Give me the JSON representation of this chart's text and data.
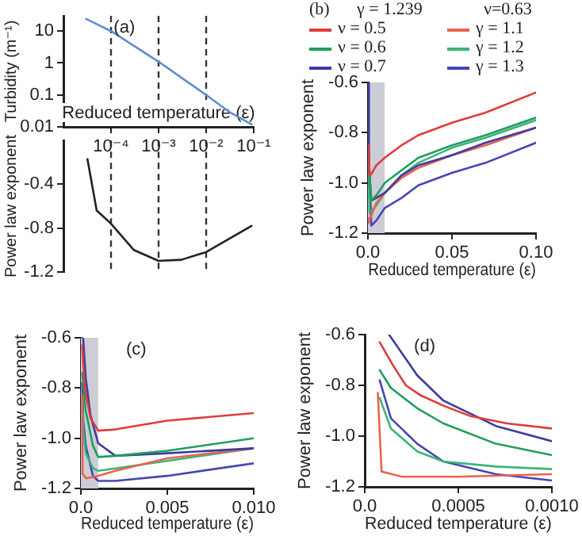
{
  "chart_data": [
    {
      "type": "line",
      "title": "(a)",
      "xlabel": "Reduced temperature (ε)",
      "ylabel": "Turbidity (m⁻¹)",
      "log": "xy",
      "grid": false,
      "x": [
        3e-05,
        0.0001,
        0.0003,
        0.001,
        0.003,
        0.01,
        0.03,
        0.09
      ],
      "values": [
        24,
        10,
        3.5,
        1.1,
        0.35,
        0.1,
        0.03,
        0.012
      ],
      "color": "#5b8fd0",
      "xlim": [
        1e-05,
        0.1
      ],
      "xticks": [
        {
          "value": 0.0001,
          "label": "10⁻⁴"
        },
        {
          "value": 0.001,
          "label": "10⁻³"
        },
        {
          "value": 0.01,
          "label": "10⁻²"
        },
        {
          "value": 0.1,
          "label": "10⁻¹"
        }
      ],
      "ylim": [
        0.01,
        30
      ],
      "yticks": [
        0.01,
        0.1,
        1,
        10
      ],
      "ref_lines": [
        {
          "axis": "x",
          "value": 0.0001,
          "line_style": "dashed",
          "color": "#333333"
        },
        {
          "axis": "x",
          "value": 0.001,
          "line_style": "dashed",
          "color": "#333333"
        },
        {
          "axis": "x",
          "value": 0.01,
          "line_style": "dashed",
          "color": "#333333"
        }
      ]
    },
    {
      "type": "line",
      "ylabel": "Power law exponent",
      "log": "x",
      "grid": false,
      "tick_labels": "y",
      "x": [
        3.2e-05,
        5e-05,
        0.0001,
        0.0003,
        0.001,
        0.003,
        0.01,
        0.03,
        0.09
      ],
      "values": [
        -0.17,
        -0.64,
        -0.76,
        -1.0,
        -1.1,
        -1.09,
        -1.02,
        -0.9,
        -0.78
      ],
      "color": "#222222",
      "xlim": [
        1e-05,
        0.1
      ],
      "ylim": [
        -1.2,
        0
      ],
      "yticks": [
        -0.4,
        -0.8,
        -1.2
      ],
      "ref_lines": [
        {
          "axis": "x",
          "value": 0.0001,
          "line_style": "dashed",
          "color": "#333333"
        },
        {
          "axis": "x",
          "value": 0.001,
          "line_style": "dashed",
          "color": "#333333"
        },
        {
          "axis": "x",
          "value": 0.01,
          "line_style": "dashed",
          "color": "#333333"
        }
      ]
    },
    {
      "type": "line",
      "title": "(b)",
      "xlabel": "Reduced temperature (ε)",
      "ylabel": "Power law exponent",
      "grid": false,
      "legend": "top",
      "legend_title": "γ = 1.239",
      "annotations": [
        "ν=0.63"
      ],
      "xlim": [
        0,
        0.1
      ],
      "xticks": [
        {
          "value": 0,
          "label": "0.0"
        },
        0.05,
        {
          "value": 0.1,
          "label": "0.10"
        }
      ],
      "ylim": [
        -1.2,
        -0.6
      ],
      "yticks": [
        {
          "value": -1.2,
          "label": "-1.2"
        },
        {
          "value": -1,
          "label": "-1.0"
        },
        {
          "value": -0.8,
          "label": "-0.8"
        },
        {
          "value": -0.6,
          "label": "-0.6"
        }
      ],
      "bands": [
        {
          "axis": "x",
          "from": 0,
          "to": 0.01,
          "color": "#cdcdd5"
        }
      ],
      "series": [
        {
          "name": "ν = 0.5",
          "color": "#e03c3c",
          "x": [
            0.0003,
            0.001,
            0.002,
            0.005,
            0.01,
            0.02,
            0.03,
            0.05,
            0.07,
            0.1
          ],
          "values": [
            -0.85,
            -0.97,
            -0.965,
            -0.93,
            -0.9,
            -0.85,
            -0.81,
            -0.76,
            -0.72,
            -0.64
          ]
        },
        {
          "name": "ν = 0.6",
          "color": "#1f9e5e",
          "x": [
            0.0003,
            0.002,
            0.005,
            0.01,
            0.02,
            0.03,
            0.05,
            0.07,
            0.1
          ],
          "values": [
            -0.9,
            -1.07,
            -1.05,
            -1.0,
            -0.95,
            -0.9,
            -0.85,
            -0.81,
            -0.74
          ]
        },
        {
          "name": "ν = 0.7",
          "color": "#3c3ca0",
          "x": [
            0.0001,
            0.0006,
            0.002,
            0.005,
            0.01,
            0.02,
            0.03,
            0.05,
            0.07,
            0.1
          ],
          "values": [
            -0.6,
            -0.93,
            -1.07,
            -1.06,
            -1.04,
            -0.97,
            -0.93,
            -0.89,
            -0.84,
            -0.78
          ]
        },
        {
          "name": "γ = 1.1",
          "color": "#e86450",
          "x": [
            0.0001,
            0.0003,
            0.002,
            0.005,
            0.01,
            0.02,
            0.03,
            0.05,
            0.07,
            0.1
          ],
          "values": [
            -1.14,
            -1.16,
            -1.13,
            -1.08,
            -1.04,
            -0.98,
            -0.94,
            -0.89,
            -0.85,
            -0.78
          ]
        },
        {
          "name": "γ = 1.2",
          "color": "#3cb478",
          "x": [
            0.0001,
            0.001,
            0.005,
            0.01,
            0.02,
            0.03,
            0.05,
            0.07,
            0.1
          ],
          "values": [
            -0.88,
            -1.12,
            -1.09,
            -1.04,
            -0.97,
            -0.92,
            -0.86,
            -0.82,
            -0.75
          ]
        },
        {
          "name": "γ = 1.3",
          "color": "#4646b4",
          "x": [
            0.0001,
            0.002,
            0.005,
            0.01,
            0.02,
            0.03,
            0.05,
            0.07,
            0.1
          ],
          "values": [
            -0.8,
            -1.17,
            -1.15,
            -1.1,
            -1.06,
            -1.01,
            -0.96,
            -0.92,
            -0.84
          ]
        }
      ]
    },
    {
      "type": "line",
      "title": "(c)",
      "xlabel": "Reduced temperature (ε)",
      "ylabel": "Power law exponent",
      "grid": false,
      "xlim": [
        0,
        0.01
      ],
      "xticks": [
        {
          "value": 0,
          "label": "0.0"
        },
        0.005,
        {
          "value": 0.01,
          "label": "0.010"
        }
      ],
      "ylim": [
        -1.2,
        -0.6
      ],
      "yticks": [
        {
          "value": -1.2,
          "label": "-1.2"
        },
        {
          "value": -1,
          "label": "-1.0"
        },
        {
          "value": -0.8,
          "label": "-0.8"
        },
        {
          "value": -0.6,
          "label": "-0.6"
        }
      ],
      "bands": [
        {
          "axis": "x",
          "from": 0,
          "to": 0.001,
          "color": "#cdcdd5"
        }
      ],
      "series": [
        {
          "color": "#e03c3c",
          "x": [
            8e-05,
            0.00022,
            0.00056,
            0.001,
            0.002,
            0.005,
            0.01
          ],
          "values": [
            -0.63,
            -0.8,
            -0.92,
            -0.97,
            -0.965,
            -0.93,
            -0.9
          ]
        },
        {
          "color": "#1f9e5e",
          "x": [
            8e-05,
            0.00028,
            0.0007,
            0.001,
            0.002,
            0.005,
            0.01
          ],
          "values": [
            -0.74,
            -0.89,
            -1.03,
            -1.075,
            -1.07,
            -1.05,
            -1.0
          ]
        },
        {
          "color": "#3c3ca0",
          "x": [
            0.00013,
            0.00028,
            0.00056,
            0.001,
            0.002,
            0.005,
            0.01
          ],
          "values": [
            -0.6,
            -0.76,
            -0.91,
            -1.02,
            -1.07,
            -1.06,
            -1.04
          ]
        },
        {
          "color": "#e86450",
          "x": [
            7e-05,
            0.0001,
            0.0003,
            0.001,
            0.002,
            0.005,
            0.01
          ],
          "values": [
            -0.83,
            -1.14,
            -1.16,
            -1.15,
            -1.13,
            -1.08,
            -1.04
          ]
        },
        {
          "color": "#3cb478",
          "x": [
            8e-05,
            0.00014,
            0.00028,
            0.0007,
            0.001,
            0.002,
            0.005,
            0.01
          ],
          "values": [
            -0.85,
            -0.97,
            -1.06,
            -1.12,
            -1.13,
            -1.12,
            -1.09,
            -1.04
          ]
        },
        {
          "color": "#4646b4",
          "x": [
            8e-05,
            0.00014,
            0.00028,
            0.0007,
            0.001,
            0.002,
            0.005,
            0.01
          ],
          "values": [
            -0.78,
            -0.93,
            -1.03,
            -1.15,
            -1.17,
            -1.17,
            -1.15,
            -1.1
          ]
        }
      ]
    },
    {
      "type": "line",
      "title": "(d)",
      "xlabel": "Reduced temperature (ε)",
      "ylabel": "Power law exponent",
      "grid": false,
      "xlim": [
        0,
        0.001
      ],
      "xticks": [
        {
          "value": 0,
          "label": "0.0"
        },
        0.0005,
        {
          "value": 0.001,
          "label": "0.0010"
        }
      ],
      "ylim": [
        -1.2,
        -0.6
      ],
      "yticks": [
        {
          "value": -1.2,
          "label": "-1.2"
        },
        {
          "value": -1,
          "label": "-1.0"
        },
        {
          "value": -0.8,
          "label": "-0.8"
        },
        {
          "value": -0.6,
          "label": "-0.6"
        }
      ],
      "series": [
        {
          "color": "#e03c3c",
          "x": [
            8e-05,
            0.00015,
            0.00022,
            0.0003,
            0.00042,
            0.00056,
            0.00076,
            0.001
          ],
          "values": [
            -0.63,
            -0.72,
            -0.8,
            -0.84,
            -0.88,
            -0.92,
            -0.95,
            -0.97
          ]
        },
        {
          "color": "#1f9e5e",
          "x": [
            8e-05,
            0.00014,
            0.00028,
            0.00042,
            0.0007,
            0.001
          ],
          "values": [
            -0.74,
            -0.81,
            -0.89,
            -0.95,
            -1.03,
            -1.075
          ]
        },
        {
          "color": "#3c3ca0",
          "x": [
            0.00013,
            0.00028,
            0.00042,
            0.00056,
            0.0007,
            0.001
          ],
          "values": [
            -0.6,
            -0.76,
            -0.86,
            -0.91,
            -0.96,
            -1.02
          ]
        },
        {
          "color": "#e86450",
          "x": [
            7e-05,
            9e-05,
            0.0002,
            0.0005,
            0.001
          ],
          "values": [
            -0.83,
            -1.14,
            -1.16,
            -1.16,
            -1.15
          ]
        },
        {
          "color": "#3cb478",
          "x": [
            8e-05,
            0.00014,
            0.00028,
            0.00042,
            0.0007,
            0.001
          ],
          "values": [
            -0.85,
            -0.97,
            -1.06,
            -1.1,
            -1.12,
            -1.13
          ]
        },
        {
          "color": "#4646b4",
          "x": [
            8e-05,
            0.00014,
            0.00028,
            0.00042,
            0.0007,
            0.001
          ],
          "values": [
            -0.78,
            -0.93,
            -1.03,
            -1.1,
            -1.15,
            -1.175
          ]
        }
      ]
    }
  ]
}
